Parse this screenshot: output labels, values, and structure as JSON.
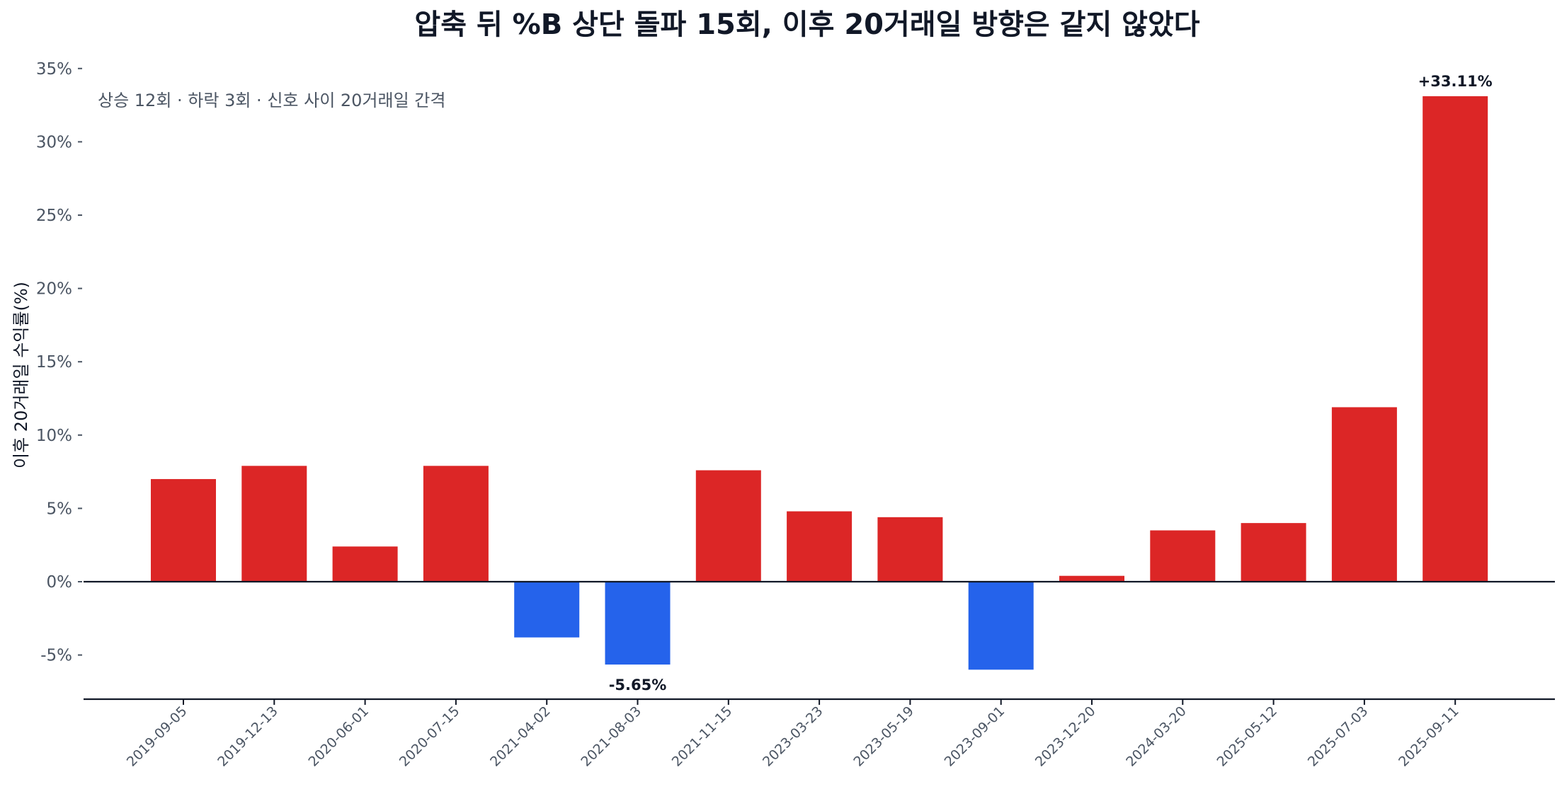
{
  "chart_data": {
    "type": "bar",
    "title": "압축 뒤 %B 상단 돌파 15회, 이후 20거래일 방향은 같지 않았다",
    "subtitle": "상승 12회 · 하락 3회 · 신호 사이 20거래일 간격",
    "xlabel": "",
    "ylabel": "이후 20거래일 수익률(%)",
    "ylim": [
      -8,
      35
    ],
    "yticks": [
      -5,
      0,
      5,
      10,
      15,
      20,
      25,
      30,
      35
    ],
    "ytick_labels": [
      "-5%",
      "0%",
      "5%",
      "10%",
      "15%",
      "20%",
      "25%",
      "30%",
      "35%"
    ],
    "categories": [
      "2019-09-05",
      "2019-12-13",
      "2020-06-01",
      "2020-07-15",
      "2021-04-02",
      "2021-08-03",
      "2021-11-15",
      "2023-03-23",
      "2023-05-19",
      "2023-09-01",
      "2023-12-20",
      "2024-03-20",
      "2025-05-12",
      "2025-07-03",
      "2025-09-11"
    ],
    "values": [
      7.0,
      7.9,
      2.4,
      7.9,
      -3.8,
      -5.65,
      7.6,
      4.8,
      4.4,
      -6.0,
      0.4,
      3.5,
      4.0,
      11.9,
      33.11
    ],
    "annotations": [
      {
        "category": "2021-08-03",
        "text": "-5.65%"
      },
      {
        "category": "2025-09-11",
        "text": "+33.11%"
      }
    ],
    "colors": {
      "up": "#dc2626",
      "down": "#2563eb"
    },
    "grid": false,
    "legend": "none"
  }
}
